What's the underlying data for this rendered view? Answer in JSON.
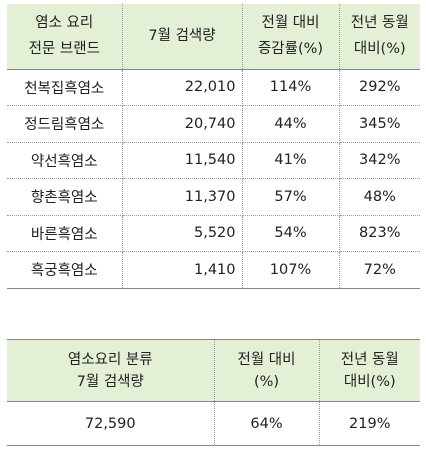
{
  "brand_table": {
    "headers": [
      {
        "line1": "염소 요리",
        "line2": "전문 브랜드"
      },
      {
        "line1": "7월 검색량",
        "line2": ""
      },
      {
        "line1": "전월 대비",
        "line2": "증감률(%)"
      },
      {
        "line1": "전년 동월",
        "line2": "대비(%)"
      }
    ],
    "rows": [
      {
        "brand": "천복집흑염소",
        "volume": "22,010",
        "mom": "114%",
        "yoy": "292%"
      },
      {
        "brand": "정드림흑염소",
        "volume": "20,740",
        "mom": "44%",
        "yoy": "345%"
      },
      {
        "brand": "약선흑염소",
        "volume": "11,540",
        "mom": "41%",
        "yoy": "342%"
      },
      {
        "brand": "향촌흑염소",
        "volume": "11,370",
        "mom": "57%",
        "yoy": "48%"
      },
      {
        "brand": "바른흑염소",
        "volume": "5,520",
        "mom": "54%",
        "yoy": "823%"
      },
      {
        "brand": "흑궁흑염소",
        "volume": "1,410",
        "mom": "107%",
        "yoy": "72%"
      }
    ]
  },
  "category_table": {
    "headers": [
      {
        "line1": "염소요리 분류",
        "line2": "7월 검색량"
      },
      {
        "line1": "전월 대비",
        "line2": "(%)"
      },
      {
        "line1": "전년 동월",
        "line2": "대비(%)"
      }
    ],
    "row": {
      "volume": "72,590",
      "mom": "64%",
      "yoy": "219%"
    }
  },
  "colors": {
    "header_bg": "#e4f0d6",
    "border": "#888888"
  }
}
